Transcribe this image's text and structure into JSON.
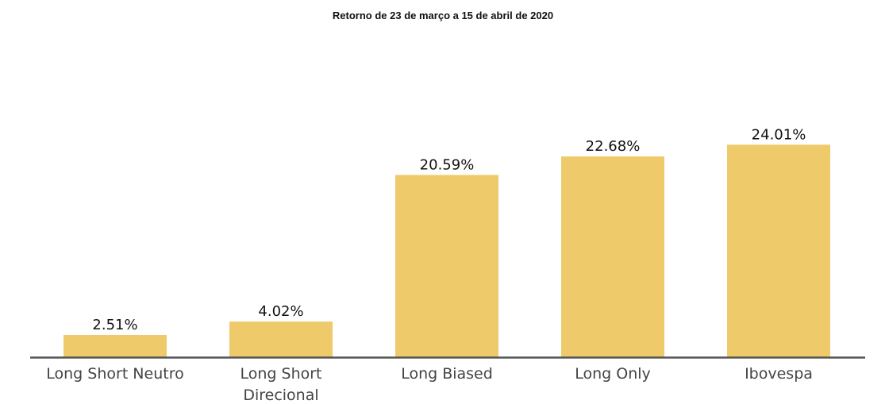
{
  "chart_data": {
    "type": "bar",
    "title": "Retorno de 23 de março a 15 de abril de 2020",
    "xlabel": "",
    "ylabel": "",
    "categories": [
      [
        "Long Short Neutro"
      ],
      [
        "Long Short",
        "Direcional"
      ],
      [
        "Long Biased"
      ],
      [
        "Long Only"
      ],
      [
        "Ibovespa"
      ]
    ],
    "values": [
      2.51,
      4.02,
      20.59,
      22.68,
      24.01
    ],
    "value_labels": [
      "2.51%",
      "4.02%",
      "20.59%",
      "22.68%",
      "24.01%"
    ],
    "ylim": [
      0,
      30
    ],
    "grid": false,
    "legend": "none",
    "bar_color": "#EECA6A",
    "axis_color": "#555555"
  }
}
